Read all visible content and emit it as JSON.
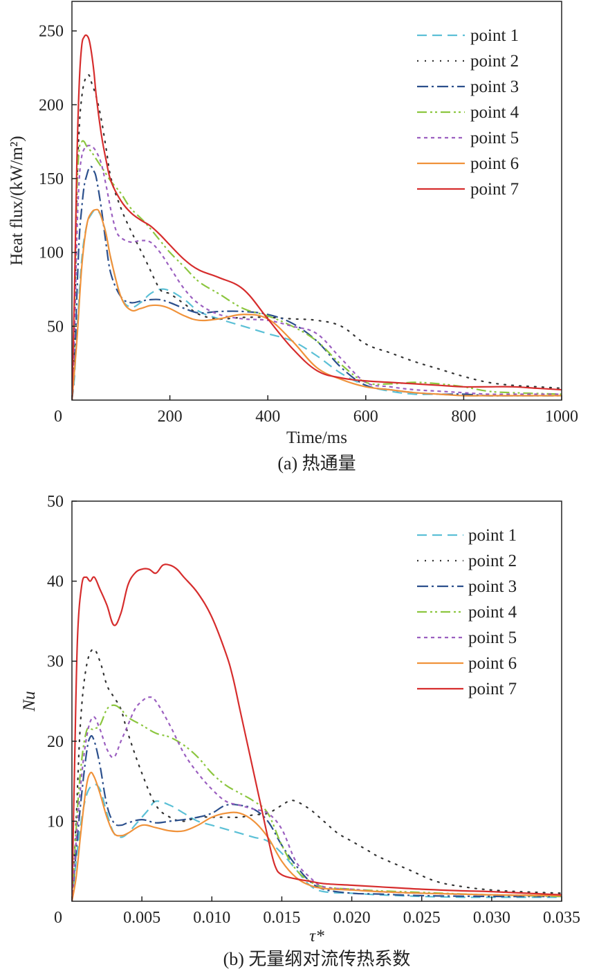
{
  "chart_data": [
    {
      "type": "line",
      "caption": "(a) 热通量",
      "xlabel": "Time/ms",
      "ylabel": "Heat flux/(kW/m²)",
      "xlim": [
        0,
        1000
      ],
      "ylim": [
        0,
        270
      ],
      "xticks": [
        0,
        200,
        400,
        600,
        800,
        1000
      ],
      "xtick_labels": [
        "0",
        "200",
        "400",
        "600",
        "800",
        "1000"
      ],
      "yticks": [
        50,
        100,
        150,
        200,
        250
      ],
      "ytick_labels": [
        "50",
        "100",
        "150",
        "200",
        "250"
      ],
      "grid": false,
      "legend_position": "top-right",
      "series": [
        {
          "name": "point 1",
          "color": "#5bc0d6",
          "dash": "14,8",
          "x": [
            0,
            5,
            10,
            20,
            30,
            40,
            50,
            60,
            70,
            80,
            100,
            120,
            140,
            160,
            180,
            200,
            230,
            260,
            300,
            350,
            400,
            450,
            500,
            550,
            600,
            650,
            700,
            750,
            800,
            850,
            900,
            1000
          ],
          "y": [
            0,
            15,
            45,
            95,
            118,
            126,
            129,
            124,
            112,
            95,
            70,
            63,
            66,
            72,
            75,
            74,
            68,
            60,
            55,
            50,
            45,
            40,
            30,
            18,
            10,
            6,
            4,
            4,
            3,
            3,
            3,
            3
          ]
        },
        {
          "name": "point 2",
          "color": "#333333",
          "dash": "2,9",
          "x": [
            0,
            5,
            10,
            15,
            20,
            25,
            30,
            35,
            40,
            50,
            60,
            70,
            80,
            100,
            120,
            150,
            180,
            200,
            230,
            260,
            300,
            350,
            400,
            450,
            500,
            550,
            600,
            650,
            700,
            750,
            800,
            850,
            900,
            950,
            1000
          ],
          "y": [
            0,
            40,
            140,
            185,
            205,
            215,
            219,
            220,
            215,
            205,
            190,
            170,
            150,
            130,
            115,
            95,
            75,
            72,
            65,
            58,
            55,
            56,
            56,
            55,
            54,
            50,
            38,
            32,
            26,
            21,
            16,
            12,
            10,
            9,
            8
          ]
        },
        {
          "name": "point 3",
          "color": "#2b4f8c",
          "dash": "16,5,3,5",
          "x": [
            0,
            5,
            10,
            15,
            20,
            25,
            30,
            35,
            40,
            45,
            50,
            60,
            70,
            80,
            100,
            120,
            140,
            160,
            180,
            200,
            230,
            260,
            300,
            350,
            400,
            450,
            500,
            550,
            600,
            650,
            700,
            750,
            800,
            850,
            900,
            1000
          ],
          "y": [
            0,
            20,
            70,
            110,
            130,
            145,
            152,
            157,
            158,
            155,
            150,
            130,
            105,
            85,
            70,
            66,
            67,
            68,
            68,
            66,
            62,
            59,
            60,
            60,
            58,
            52,
            40,
            22,
            10,
            7,
            5,
            4,
            4,
            3,
            3,
            3
          ]
        },
        {
          "name": "point 4",
          "color": "#8cc63f",
          "dash": "14,5,3,4,3,5",
          "x": [
            0,
            5,
            10,
            15,
            20,
            25,
            30,
            40,
            50,
            60,
            70,
            80,
            100,
            120,
            150,
            180,
            200,
            230,
            260,
            300,
            350,
            400,
            450,
            500,
            550,
            600,
            650,
            700,
            750,
            800,
            850,
            900,
            1000
          ],
          "y": [
            0,
            60,
            140,
            170,
            175,
            175,
            172,
            168,
            163,
            158,
            153,
            148,
            140,
            130,
            120,
            108,
            100,
            90,
            80,
            72,
            62,
            57,
            50,
            40,
            24,
            12,
            11,
            12,
            11,
            9,
            6,
            5,
            4
          ]
        },
        {
          "name": "point 5",
          "color": "#9b5fc0",
          "dash": "5,5",
          "x": [
            0,
            5,
            10,
            15,
            20,
            25,
            30,
            40,
            50,
            60,
            70,
            80,
            90,
            100,
            120,
            140,
            160,
            180,
            200,
            230,
            260,
            300,
            350,
            400,
            450,
            500,
            550,
            600,
            650,
            700,
            750,
            800,
            850,
            900,
            1000
          ],
          "y": [
            0,
            40,
            110,
            150,
            165,
            170,
            172,
            172,
            168,
            160,
            145,
            128,
            115,
            110,
            107,
            108,
            107,
            100,
            90,
            75,
            65,
            58,
            55,
            54,
            50,
            45,
            28,
            12,
            9,
            7,
            6,
            5,
            4,
            4,
            4
          ]
        },
        {
          "name": "point 6",
          "color": "#f0923a",
          "dash": "",
          "x": [
            0,
            10,
            20,
            30,
            40,
            50,
            55,
            60,
            70,
            80,
            100,
            120,
            140,
            160,
            180,
            200,
            230,
            260,
            300,
            350,
            400,
            450,
            500,
            550,
            600,
            650,
            700,
            750,
            800,
            850,
            900,
            1000
          ],
          "y": [
            0,
            40,
            90,
            118,
            127,
            129,
            128,
            124,
            112,
            95,
            70,
            61,
            62,
            64,
            64,
            62,
            57,
            54,
            55,
            58,
            55,
            40,
            22,
            14,
            9,
            7,
            5,
            4,
            3,
            3,
            3,
            3
          ]
        },
        {
          "name": "point 7",
          "color": "#d62d2d",
          "dash": "",
          "x": [
            0,
            5,
            10,
            15,
            20,
            25,
            30,
            35,
            40,
            45,
            50,
            60,
            70,
            80,
            100,
            120,
            140,
            160,
            180,
            200,
            230,
            260,
            300,
            350,
            400,
            450,
            500,
            550,
            600,
            650,
            700,
            750,
            800,
            850,
            900,
            950,
            1000
          ],
          "y": [
            0,
            70,
            160,
            215,
            240,
            246,
            247,
            244,
            235,
            222,
            205,
            180,
            162,
            148,
            135,
            127,
            122,
            118,
            112,
            105,
            95,
            88,
            83,
            75,
            55,
            35,
            20,
            15,
            13,
            12,
            11,
            10,
            9,
            9,
            9,
            8,
            7
          ]
        }
      ]
    },
    {
      "type": "line",
      "caption": "(b) 无量纲对流传热系数",
      "xlabel": "τ*",
      "ylabel": "Nu",
      "xlim": [
        0,
        0.035
      ],
      "ylim": [
        0,
        50
      ],
      "xticks": [
        0,
        0.005,
        0.01,
        0.015,
        0.02,
        0.025,
        0.03,
        0.035
      ],
      "xtick_labels": [
        "0",
        "0.005",
        "0.010",
        "0.015",
        "0.020",
        "0.025",
        "0.030",
        "0.035"
      ],
      "yticks": [
        10,
        20,
        30,
        40,
        50
      ],
      "ytick_labels": [
        "10",
        "20",
        "30",
        "40",
        "50"
      ],
      "grid": false,
      "legend_position": "top-right",
      "series": [
        {
          "name": "point 1",
          "color": "#5bc0d6",
          "dash": "14,8",
          "x": [
            0,
            0.0005,
            0.001,
            0.0015,
            0.002,
            0.0025,
            0.003,
            0.0035,
            0.004,
            0.0045,
            0.005,
            0.0055,
            0.006,
            0.007,
            0.008,
            0.009,
            0.01,
            0.011,
            0.012,
            0.013,
            0.014,
            0.015,
            0.016,
            0.017,
            0.018,
            0.02,
            0.022,
            0.025,
            0.028,
            0.03,
            0.035
          ],
          "y": [
            0,
            8,
            13,
            14.5,
            14,
            11,
            8.5,
            8,
            8.5,
            9.5,
            10.5,
            11.5,
            12.5,
            12,
            11,
            10,
            9.5,
            9,
            8.5,
            8,
            7.5,
            6,
            4,
            2,
            1.2,
            1,
            0.8,
            0.6,
            0.5,
            0.5,
            0.5
          ]
        },
        {
          "name": "point 2",
          "color": "#333333",
          "dash": "2,9",
          "x": [
            0,
            0.0003,
            0.0006,
            0.001,
            0.0015,
            0.002,
            0.0025,
            0.003,
            0.0035,
            0.004,
            0.005,
            0.006,
            0.007,
            0.008,
            0.009,
            0.01,
            0.011,
            0.012,
            0.013,
            0.014,
            0.015,
            0.0155,
            0.016,
            0.017,
            0.018,
            0.019,
            0.02,
            0.021,
            0.022,
            0.024,
            0.026,
            0.028,
            0.03,
            0.032,
            0.035
          ],
          "y": [
            0,
            10,
            22,
            29,
            31.5,
            30,
            27,
            25.5,
            24,
            21,
            16,
            12,
            10.5,
            10,
            10.5,
            10.5,
            10.5,
            10.5,
            10.8,
            11,
            12,
            12.5,
            12.5,
            11.5,
            10,
            8.5,
            7.5,
            6.5,
            5.5,
            4,
            2.5,
            1.8,
            1.4,
            1.2,
            1
          ]
        },
        {
          "name": "point 3",
          "color": "#2b4f8c",
          "dash": "16,5,3,5",
          "x": [
            0,
            0.0005,
            0.001,
            0.0013,
            0.0016,
            0.002,
            0.0025,
            0.003,
            0.0035,
            0.004,
            0.005,
            0.006,
            0.007,
            0.008,
            0.009,
            0.01,
            0.011,
            0.012,
            0.013,
            0.014,
            0.015,
            0.016,
            0.017,
            0.018,
            0.02,
            0.022,
            0.025,
            0.03,
            0.035
          ],
          "y": [
            0,
            10,
            18,
            20.5,
            20,
            17,
            12,
            9.8,
            9.5,
            9.8,
            10.2,
            9.8,
            10,
            10.2,
            10.5,
            11,
            12,
            12,
            11.5,
            10,
            7,
            4.5,
            2.5,
            1.5,
            1,
            0.9,
            0.7,
            0.6,
            0.6
          ]
        },
        {
          "name": "point 4",
          "color": "#8cc63f",
          "dash": "14,5,3,4,3,5",
          "x": [
            0,
            0.0005,
            0.001,
            0.0015,
            0.002,
            0.0025,
            0.003,
            0.0035,
            0.004,
            0.005,
            0.006,
            0.007,
            0.008,
            0.009,
            0.01,
            0.011,
            0.012,
            0.013,
            0.014,
            0.015,
            0.016,
            0.017,
            0.018,
            0.02,
            0.022,
            0.025,
            0.028,
            0.03,
            0.035
          ],
          "y": [
            0,
            14,
            21,
            21.5,
            22,
            24,
            24.5,
            24,
            23,
            22,
            21,
            20.5,
            19.5,
            18,
            16,
            14.5,
            13.5,
            12.5,
            11,
            7,
            4,
            2.5,
            1.8,
            1.5,
            1.3,
            1.1,
            0.9,
            0.8,
            0.6
          ]
        },
        {
          "name": "point 5",
          "color": "#9b5fc0",
          "dash": "5,5",
          "x": [
            0,
            0.0005,
            0.001,
            0.0015,
            0.002,
            0.0025,
            0.003,
            0.0035,
            0.004,
            0.0045,
            0.005,
            0.0055,
            0.006,
            0.007,
            0.008,
            0.009,
            0.01,
            0.011,
            0.012,
            0.013,
            0.014,
            0.015,
            0.016,
            0.017,
            0.018,
            0.02,
            0.022,
            0.025,
            0.03,
            0.035
          ],
          "y": [
            0,
            12,
            20,
            23,
            21.5,
            19,
            18,
            20,
            22,
            24,
            25,
            25.5,
            25,
            22,
            18.5,
            16,
            14,
            12.5,
            12,
            11.5,
            11,
            9,
            5,
            3,
            1.8,
            1.5,
            1.2,
            1,
            0.8,
            0.7
          ]
        },
        {
          "name": "point 6",
          "color": "#f0923a",
          "dash": "",
          "x": [
            0,
            0.0003,
            0.0006,
            0.001,
            0.0013,
            0.0016,
            0.002,
            0.0025,
            0.003,
            0.0035,
            0.004,
            0.005,
            0.006,
            0.007,
            0.008,
            0.009,
            0.01,
            0.011,
            0.012,
            0.013,
            0.014,
            0.015,
            0.016,
            0.017,
            0.018,
            0.02,
            0.022,
            0.025,
            0.03,
            0.035
          ],
          "y": [
            0,
            3,
            8,
            14,
            16,
            15.5,
            13.5,
            10.5,
            8.5,
            8.2,
            8.5,
            9.5,
            9.2,
            8.8,
            8.8,
            9.5,
            10.5,
            11,
            11,
            10,
            8,
            5,
            3,
            2,
            1.6,
            1.4,
            1.2,
            1,
            0.8,
            0.7
          ]
        },
        {
          "name": "point 7",
          "color": "#d62d2d",
          "dash": "",
          "x": [
            0,
            0.0002,
            0.0004,
            0.0007,
            0.001,
            0.0013,
            0.0016,
            0.002,
            0.0025,
            0.003,
            0.0035,
            0.004,
            0.0045,
            0.005,
            0.0055,
            0.006,
            0.0065,
            0.007,
            0.0075,
            0.008,
            0.009,
            0.01,
            0.011,
            0.0115,
            0.012,
            0.0125,
            0.013,
            0.0135,
            0.014,
            0.0145,
            0.015,
            0.016,
            0.017,
            0.018,
            0.02,
            0.022,
            0.025,
            0.028,
            0.03,
            0.035
          ],
          "y": [
            0,
            18,
            33,
            39.5,
            40.5,
            40,
            40.5,
            39,
            37,
            34.5,
            36,
            39.5,
            41,
            41.5,
            41.5,
            41,
            42,
            42,
            41.5,
            40.5,
            38.5,
            35.5,
            31,
            28,
            24,
            20,
            16,
            12,
            8,
            4.5,
            3.3,
            2.8,
            2.5,
            2.2,
            2,
            1.8,
            1.5,
            1.3,
            1.2,
            0.8
          ]
        }
      ]
    }
  ]
}
